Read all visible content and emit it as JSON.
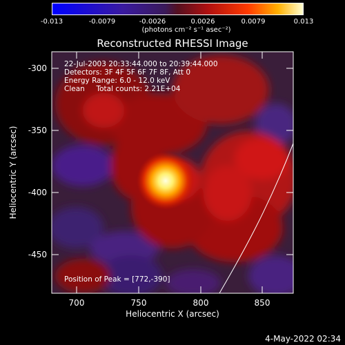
{
  "colorbar": {
    "ticks": [
      "-0.013",
      "-0.0079",
      "-0.0026",
      "0.0026",
      "0.0079",
      "0.013"
    ],
    "units": "(photons cm⁻² s⁻¹ asec⁻²)"
  },
  "title": "Reconstructed RHESSI Image",
  "annotations": {
    "time": "22-Jul-2003 20:33:44.000 to 20:39:44.000",
    "detectors": "Detectors: 3F 4F 5F 6F 7F 8F, Att 0",
    "energy": "Energy Range: 6.0 - 12.0 keV",
    "clean": "Clean     Total counts: 2.21E+04",
    "peak": "Position of Peak = [772,-390]"
  },
  "axes": {
    "xlabel": "Heliocentric X (arcsec)",
    "ylabel": "Heliocentric Y (arcsec)",
    "xticks": [
      "700",
      "750",
      "800",
      "850"
    ],
    "yticks": [
      "-300",
      "-350",
      "-400",
      "-450"
    ]
  },
  "footer": "4-May-2022 02:34",
  "colors": {
    "background": "#000000",
    "axes": "#ffffff"
  }
}
